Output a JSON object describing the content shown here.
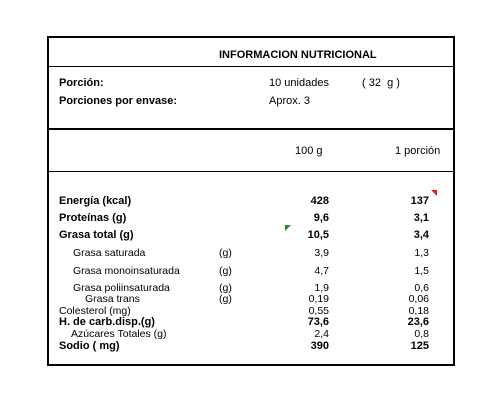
{
  "title": "INFORMACION NUTRICIONAL",
  "serving": {
    "label": "Porción:",
    "amount": "10 unidades",
    "weight": "( 32  g )",
    "per_container_label": "Porciones por envase:",
    "per_container_value": "Aprox. 3"
  },
  "columns": {
    "per100": "100 g",
    "per_serving": "1 porción"
  },
  "rows": [
    {
      "name": "Energía (kcal)",
      "unit": "",
      "v100": "428",
      "vserv": "137"
    },
    {
      "name": "Proteínas (g)",
      "unit": "",
      "v100": "9,6",
      "vserv": "3,1"
    },
    {
      "name": "Grasa total (g)",
      "unit": "",
      "v100": "10,5",
      "vserv": "3,4"
    },
    {
      "name": "Grasa saturada",
      "unit": "(g)",
      "v100": "3,9",
      "vserv": "1,3"
    },
    {
      "name": "Grasa monoinsaturada",
      "unit": "(g)",
      "v100": "4,7",
      "vserv": "1,5"
    },
    {
      "name": "Grasa poliinsaturada",
      "unit": "(g)",
      "v100": "1,9",
      "vserv": "0,6"
    },
    {
      "name": "Grasa trans",
      "unit": "(g)",
      "v100": "0,19",
      "vserv": "0,06"
    },
    {
      "name": "Colesterol (mg)",
      "unit": "",
      "v100": "0,55",
      "vserv": "0,18"
    },
    {
      "name": "H. de carb.disp.(g)",
      "unit": "",
      "v100": "73,6",
      "vserv": "23,6"
    },
    {
      "name": "Azúcares Totales (g)",
      "unit": "",
      "v100": "2,4",
      "vserv": "0,8"
    },
    {
      "name": "Sodio ( mg)",
      "unit": "",
      "v100": "390",
      "vserv": "125"
    }
  ],
  "colors": {
    "rule": "#000000",
    "text": "#000000",
    "marker_red": "#e02020",
    "marker_green": "#1f8f2f"
  }
}
